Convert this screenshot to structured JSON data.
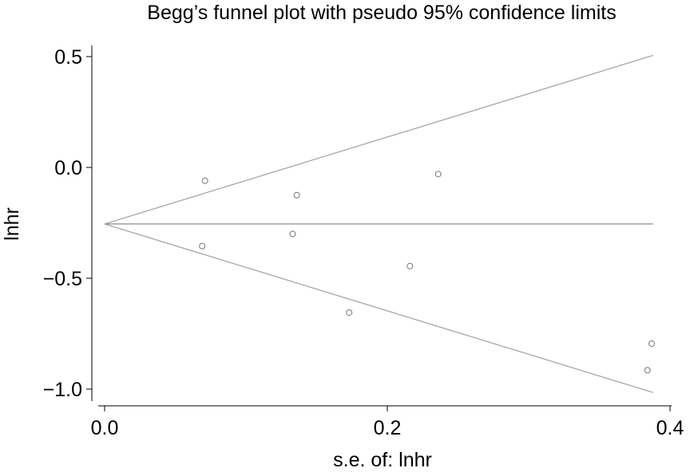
{
  "chart_data": {
    "type": "scatter",
    "title": "Begg’s funnel plot with pseudo 95% confidence limits",
    "xlabel": "s.e. of: lnhr",
    "ylabel": "lnhr",
    "xlim": [
      0,
      0.4
    ],
    "ylim": [
      -1.0,
      0.5
    ],
    "x_ticks": [
      0.0,
      0.2,
      0.4
    ],
    "x_tick_labels": [
      "0.0",
      "0.2",
      "0.4"
    ],
    "y_ticks": [
      0.5,
      0.0,
      -0.5,
      -1.0
    ],
    "y_tick_labels": [
      "0.5",
      "0.0",
      "−0.5",
      "−1.0"
    ],
    "pooled_estimate": -0.255,
    "limit_se_max": 0.388,
    "grid": false,
    "points": [
      {
        "x": 0.071,
        "y": -0.06
      },
      {
        "x": 0.069,
        "y": -0.355
      },
      {
        "x": 0.136,
        "y": -0.125
      },
      {
        "x": 0.133,
        "y": -0.3
      },
      {
        "x": 0.173,
        "y": -0.655
      },
      {
        "x": 0.216,
        "y": -0.445
      },
      {
        "x": 0.236,
        "y": -0.03
      },
      {
        "x": 0.384,
        "y": -0.915
      },
      {
        "x": 0.387,
        "y": -0.795
      }
    ]
  }
}
